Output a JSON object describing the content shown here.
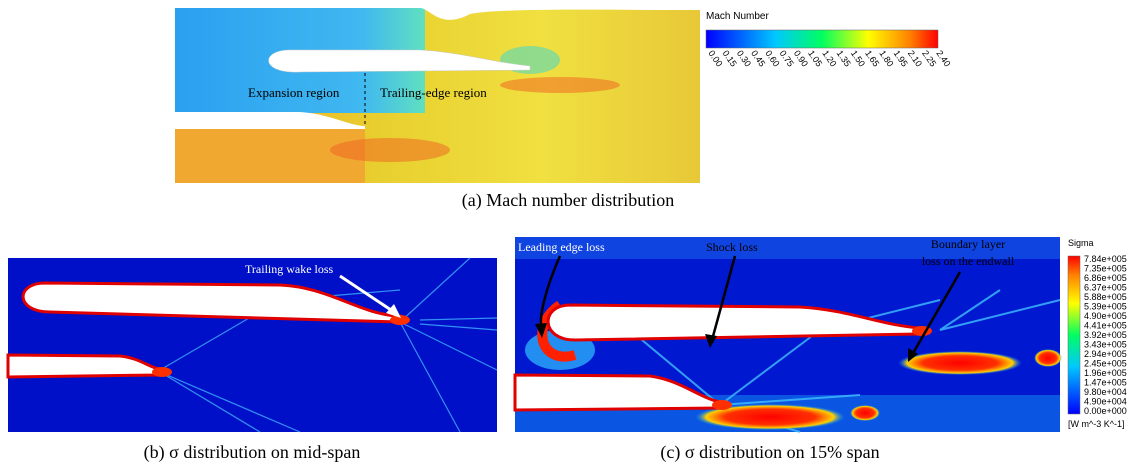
{
  "panel_a": {
    "colorbar": {
      "title": "Mach Number",
      "ticks": [
        "0.00",
        "0.15",
        "0.30",
        "0.45",
        "0.60",
        "0.75",
        "0.90",
        "1.05",
        "1.20",
        "1.35",
        "1.50",
        "1.65",
        "1.80",
        "1.95",
        "2.10",
        "2.25",
        "2.40"
      ]
    },
    "annotations": [
      "Expansion region",
      "Trailing-edge region"
    ],
    "caption": "(a) Mach number distribution"
  },
  "panel_b": {
    "annotation": "Trailing  wake loss",
    "caption": "(b) σ distribution on mid-span"
  },
  "panel_c": {
    "annotations": [
      "Leading edge loss",
      "Shock loss",
      "Boundary layer",
      "loss on the endwall"
    ],
    "caption": "(c) σ distribution on 15% span"
  },
  "sigma_colorbar": {
    "title": "Sigma",
    "ticks": [
      "7.84e+005",
      "7.35e+005",
      "6.86e+005",
      "6.37e+005",
      "5.88e+005",
      "5.39e+005",
      "4.90e+005",
      "4.41e+005",
      "3.92e+005",
      "3.43e+005",
      "2.94e+005",
      "2.45e+005",
      "1.96e+005",
      "1.47e+005",
      "9.80e+004",
      "4.90e+004",
      "0.00e+000"
    ],
    "unit": "[W m^-3 K^-1]"
  }
}
